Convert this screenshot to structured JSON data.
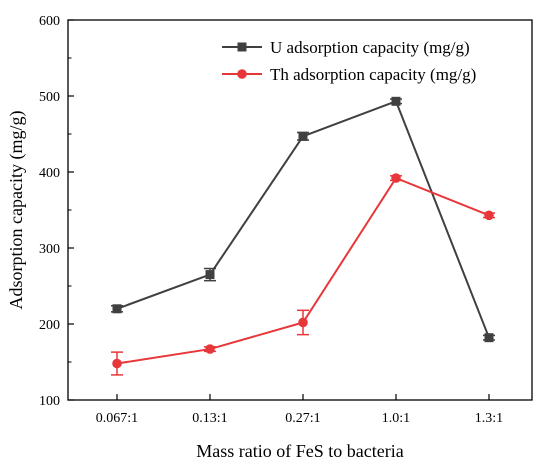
{
  "chart_data": {
    "type": "line",
    "categories": [
      "0.067:1",
      "0.13:1",
      "0.27:1",
      "1.0:1",
      "1.3:1"
    ],
    "xlabel": "Mass ratio of FeS to bacteria",
    "ylabel": "Adsorption capacity  (mg/g)",
    "ylim": [
      100,
      600
    ],
    "yticks": [
      100,
      200,
      300,
      400,
      500,
      600
    ],
    "grid": false,
    "legend_position": "top-right",
    "series": [
      {
        "name": "U adsorption capacity (mg/g)",
        "color": "#404040",
        "marker": "square",
        "values": [
          220,
          265,
          447,
          493,
          182
        ],
        "errors": [
          4,
          8,
          5,
          3,
          3
        ]
      },
      {
        "name": "Th adsorption capacity (mg/g)",
        "color": "#e8373a",
        "marker": "circle",
        "values": [
          148,
          167,
          202,
          392,
          343
        ],
        "errors": [
          15,
          3,
          16,
          3,
          3
        ]
      }
    ]
  }
}
